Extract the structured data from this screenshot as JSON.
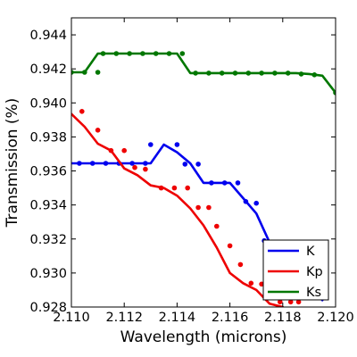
{
  "chart_data": {
    "type": "line",
    "xlabel": "Wavelength (microns)",
    "ylabel": "Transmission (%)",
    "xlim": [
      2.11,
      2.12
    ],
    "ylim": [
      0.928,
      0.945
    ],
    "x_ticks": [
      2.11,
      2.112,
      2.114,
      2.116,
      2.118,
      2.12
    ],
    "x_tick_labels": [
      "2.110",
      "2.112",
      "2.114",
      "2.116",
      "2.118",
      "2.120"
    ],
    "y_ticks": [
      0.928,
      0.93,
      0.932,
      0.934,
      0.936,
      0.938,
      0.94,
      0.942,
      0.944
    ],
    "y_tick_labels": [
      "0.928",
      "0.930",
      "0.932",
      "0.934",
      "0.936",
      "0.938",
      "0.940",
      "0.942",
      "0.944"
    ],
    "grid": false,
    "legend_position": "lower-right",
    "series": [
      {
        "name": "K",
        "color": "#0000ee",
        "line": [
          [
            2.11,
            0.93645
          ],
          [
            2.1105,
            0.93645
          ],
          [
            2.111,
            0.93645
          ],
          [
            2.1115,
            0.93645
          ],
          [
            2.112,
            0.93645
          ],
          [
            2.1125,
            0.93645
          ],
          [
            2.113,
            0.93645
          ],
          [
            2.1135,
            0.93755
          ],
          [
            2.114,
            0.9371
          ],
          [
            2.1145,
            0.93645
          ],
          [
            2.115,
            0.9353
          ],
          [
            2.1155,
            0.9353
          ],
          [
            2.116,
            0.9353
          ],
          [
            2.1165,
            0.9344
          ],
          [
            2.117,
            0.9335
          ],
          [
            2.1175,
            0.9318
          ],
          [
            2.118,
            0.931
          ],
          [
            2.1185,
            0.9302
          ],
          [
            2.119,
            0.9293
          ],
          [
            2.1195,
            0.9284
          ]
        ],
        "points": [
          [
            2.1103,
            0.93645
          ],
          [
            2.1108,
            0.93645
          ],
          [
            2.1113,
            0.93645
          ],
          [
            2.1118,
            0.93645
          ],
          [
            2.1123,
            0.93645
          ],
          [
            2.1128,
            0.93645
          ],
          [
            2.113,
            0.93755
          ],
          [
            2.114,
            0.93755
          ],
          [
            2.1143,
            0.9364
          ],
          [
            2.1148,
            0.9364
          ],
          [
            2.1153,
            0.9353
          ],
          [
            2.1158,
            0.9353
          ],
          [
            2.1163,
            0.9353
          ],
          [
            2.1166,
            0.9342
          ],
          [
            2.117,
            0.9341
          ],
          [
            2.1173,
            0.9319
          ],
          [
            2.1177,
            0.9318
          ]
        ]
      },
      {
        "name": "Kp",
        "color": "#ee0000",
        "line": [
          [
            2.11,
            0.93935
          ],
          [
            2.1105,
            0.9386
          ],
          [
            2.111,
            0.9376
          ],
          [
            2.1115,
            0.9372
          ],
          [
            2.112,
            0.93615
          ],
          [
            2.1125,
            0.93575
          ],
          [
            2.113,
            0.93515
          ],
          [
            2.1135,
            0.935
          ],
          [
            2.114,
            0.93455
          ],
          [
            2.1145,
            0.9338
          ],
          [
            2.115,
            0.9328
          ],
          [
            2.1155,
            0.9315
          ],
          [
            2.116,
            0.93
          ],
          [
            2.1165,
            0.9294
          ],
          [
            2.117,
            0.929
          ],
          [
            2.1175,
            0.9282
          ],
          [
            2.118,
            0.928
          ]
        ],
        "points": [
          [
            2.1104,
            0.9395
          ],
          [
            2.111,
            0.9384
          ],
          [
            2.1115,
            0.9372
          ],
          [
            2.112,
            0.9372
          ],
          [
            2.1124,
            0.9362
          ],
          [
            2.1128,
            0.9361
          ],
          [
            2.1134,
            0.935
          ],
          [
            2.1139,
            0.935
          ],
          [
            2.1144,
            0.935
          ],
          [
            2.1148,
            0.93385
          ],
          [
            2.1152,
            0.93385
          ],
          [
            2.1155,
            0.93275
          ],
          [
            2.116,
            0.9316
          ],
          [
            2.1164,
            0.9305
          ],
          [
            2.1168,
            0.9294
          ],
          [
            2.1172,
            0.92935
          ],
          [
            2.1176,
            0.9293
          ],
          [
            2.1179,
            0.9283
          ],
          [
            2.1183,
            0.9283
          ],
          [
            2.1186,
            0.9283
          ]
        ]
      },
      {
        "name": "Ks",
        "color": "#007700",
        "line": [
          [
            2.11,
            0.9418
          ],
          [
            2.1105,
            0.9418
          ],
          [
            2.111,
            0.9429
          ],
          [
            2.1115,
            0.9429
          ],
          [
            2.112,
            0.9429
          ],
          [
            2.1125,
            0.9429
          ],
          [
            2.113,
            0.9429
          ],
          [
            2.1135,
            0.9429
          ],
          [
            2.114,
            0.9429
          ],
          [
            2.1145,
            0.94175
          ],
          [
            2.115,
            0.94175
          ],
          [
            2.1155,
            0.94175
          ],
          [
            2.116,
            0.94175
          ],
          [
            2.1165,
            0.94175
          ],
          [
            2.117,
            0.94175
          ],
          [
            2.1175,
            0.94175
          ],
          [
            2.118,
            0.94175
          ],
          [
            2.1185,
            0.94175
          ],
          [
            2.119,
            0.9417
          ],
          [
            2.1195,
            0.9416
          ],
          [
            2.12,
            0.9406
          ]
        ],
        "points": [
          [
            2.11,
            0.9418
          ],
          [
            2.1105,
            0.9418
          ],
          [
            2.111,
            0.9418
          ],
          [
            2.1112,
            0.9429
          ],
          [
            2.1117,
            0.9429
          ],
          [
            2.1122,
            0.9429
          ],
          [
            2.1127,
            0.9429
          ],
          [
            2.1132,
            0.9429
          ],
          [
            2.1137,
            0.9429
          ],
          [
            2.1142,
            0.9429
          ],
          [
            2.1147,
            0.94175
          ],
          [
            2.1152,
            0.94175
          ],
          [
            2.1157,
            0.94175
          ],
          [
            2.1162,
            0.94175
          ],
          [
            2.1167,
            0.94175
          ],
          [
            2.1172,
            0.94175
          ],
          [
            2.1177,
            0.94175
          ],
          [
            2.1182,
            0.94175
          ],
          [
            2.1187,
            0.9417
          ],
          [
            2.1192,
            0.94165
          ],
          [
            2.12,
            0.9406
          ]
        ]
      }
    ]
  }
}
